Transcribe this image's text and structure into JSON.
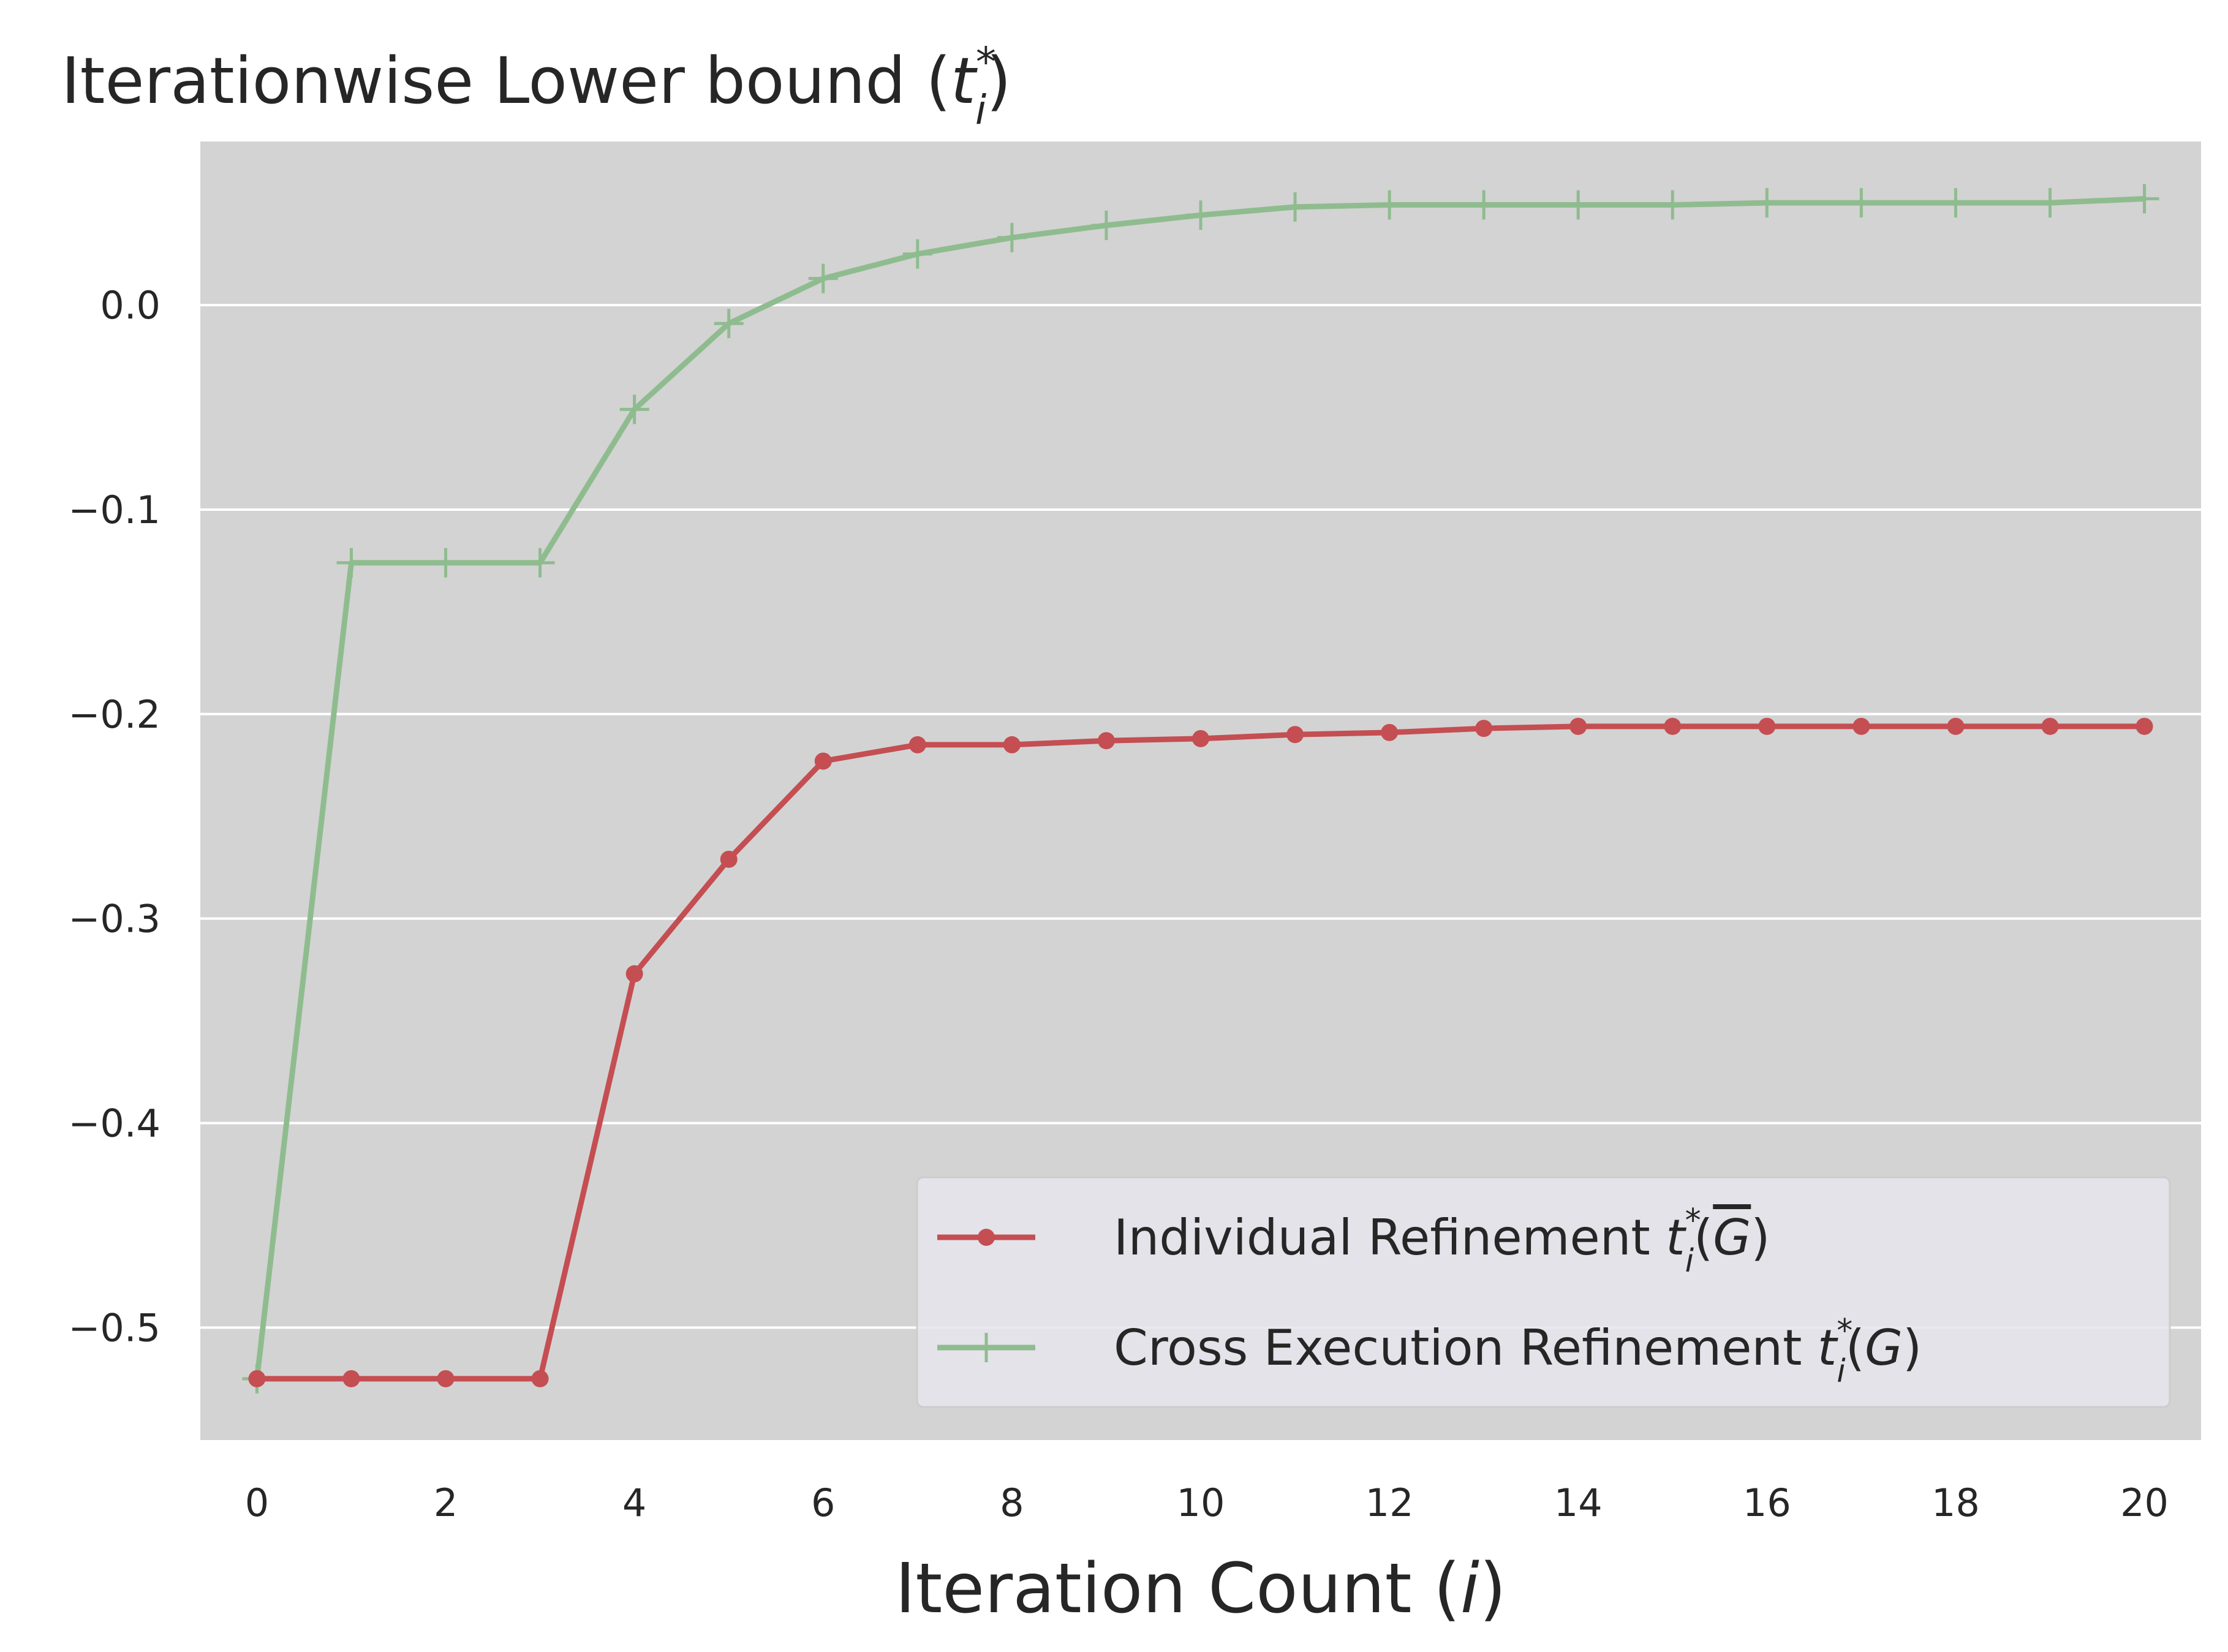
{
  "chart_data": {
    "type": "line",
    "title": {
      "main": "Iterationwise Lower bound (",
      "var": "t",
      "sup": "*",
      "sub": "i",
      "close": ")"
    },
    "xlabel": {
      "main": "Iteration Count (",
      "var": "i",
      "close": ")"
    },
    "ylabel": "",
    "x": [
      0,
      1,
      2,
      3,
      4,
      5,
      6,
      7,
      8,
      9,
      10,
      11,
      12,
      13,
      14,
      15,
      16,
      17,
      18,
      19,
      20
    ],
    "xlim": [
      -0.6,
      20.6
    ],
    "ylim": [
      -0.555,
      0.08
    ],
    "xticks": [
      0,
      2,
      4,
      6,
      8,
      10,
      12,
      14,
      16,
      18,
      20
    ],
    "xtick_labels": [
      "0",
      "2",
      "4",
      "6",
      "8",
      "10",
      "12",
      "14",
      "16",
      "18",
      "20"
    ],
    "yticks": [
      0.0,
      -0.1,
      -0.2,
      -0.3,
      -0.4,
      -0.5
    ],
    "ytick_labels": [
      "0.0",
      "−0.1",
      "−0.2",
      "−0.3",
      "−0.4",
      "−0.5"
    ],
    "grid": true,
    "legend_position": "lower-right",
    "series": [
      {
        "name": "Individual Refinement",
        "legend_math": {
          "var": "t",
          "sup": "*",
          "sub": "i",
          "arg": "G",
          "arg_overline": true
        },
        "color": "#c44e52",
        "marker": "circle",
        "values": [
          -0.525,
          -0.525,
          -0.525,
          -0.525,
          -0.327,
          -0.271,
          -0.223,
          -0.215,
          -0.215,
          -0.213,
          -0.212,
          -0.21,
          -0.209,
          -0.207,
          -0.206,
          -0.206,
          -0.206,
          -0.206,
          -0.206,
          -0.206,
          -0.206
        ]
      },
      {
        "name": "Cross Execution Refinement",
        "legend_math": {
          "var": "t",
          "sup": "*",
          "sub": "i",
          "arg": "G",
          "arg_overline": false
        },
        "color": "#8fbc8f",
        "marker": "plus",
        "values": [
          -0.525,
          -0.126,
          -0.126,
          -0.126,
          -0.051,
          -0.009,
          0.013,
          0.025,
          0.033,
          0.039,
          0.044,
          0.048,
          0.049,
          0.049,
          0.049,
          0.049,
          0.05,
          0.05,
          0.05,
          0.05,
          0.052
        ]
      }
    ],
    "colors": {
      "plot_background": "#d3d3d3",
      "grid": "#ffffff",
      "legend_background": "#e5e5ec"
    }
  }
}
